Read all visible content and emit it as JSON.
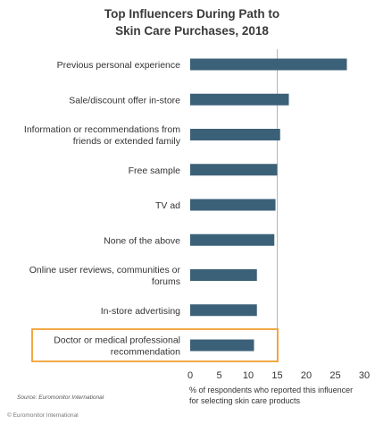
{
  "chart_data": {
    "type": "bar",
    "orientation": "horizontal",
    "title": [
      "Top Influencers During Path to",
      "Skin Care Purchases, 2018"
    ],
    "categories": [
      [
        "Previous personal experience"
      ],
      [
        "Sale/discount offer in-store"
      ],
      [
        "Information or recommendations from",
        "friends or extended family"
      ],
      [
        "Free sample"
      ],
      [
        "TV ad"
      ],
      [
        "None of the above"
      ],
      [
        "Online user reviews, communities or",
        "forums"
      ],
      [
        "In-store advertising"
      ],
      [
        "Doctor or medical professional",
        "recommendation"
      ]
    ],
    "values": [
      27,
      17,
      15.5,
      15,
      14.7,
      14.5,
      11.5,
      11.5,
      11
    ],
    "highlighted_category_index": 8,
    "xlim": [
      0,
      30
    ],
    "xticks": [
      0,
      5,
      10,
      15,
      20,
      25,
      30
    ],
    "xlabel": [
      "% of respondents who reported this influencer",
      "for selecting skin care products"
    ],
    "ylabel": "",
    "grid": "vertical-gridline-at-15",
    "bar_color": "#3b6178",
    "highlight_color": "#f0a030"
  },
  "source_text": "Source: Euromonitor International",
  "copyright_text": "© Euromonitor International"
}
